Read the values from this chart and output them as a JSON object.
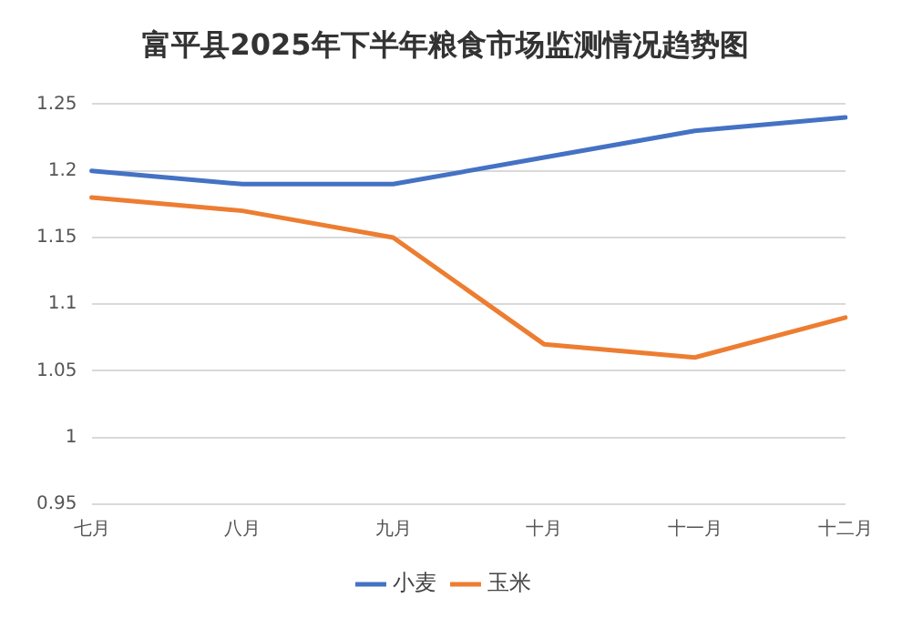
{
  "chart_data": {
    "type": "line",
    "title": "富平县2025年下半年粮食市场监测情况趋势图",
    "categories": [
      "七月",
      "八月",
      "九月",
      "十月",
      "十一月",
      "十二月"
    ],
    "series": [
      {
        "name": "小麦",
        "color": "#4472c4",
        "values": [
          1.2,
          1.19,
          1.19,
          1.21,
          1.23,
          1.24
        ]
      },
      {
        "name": "玉米",
        "color": "#ed7d31",
        "values": [
          1.18,
          1.17,
          1.15,
          1.07,
          1.06,
          1.09
        ]
      }
    ],
    "ylim": [
      0.95,
      1.25
    ],
    "yticks": [
      0.95,
      1,
      1.05,
      1.1,
      1.15,
      1.2,
      1.25
    ],
    "grid": "y",
    "legend": "bottom",
    "marker": "none",
    "line_style": "solid"
  }
}
